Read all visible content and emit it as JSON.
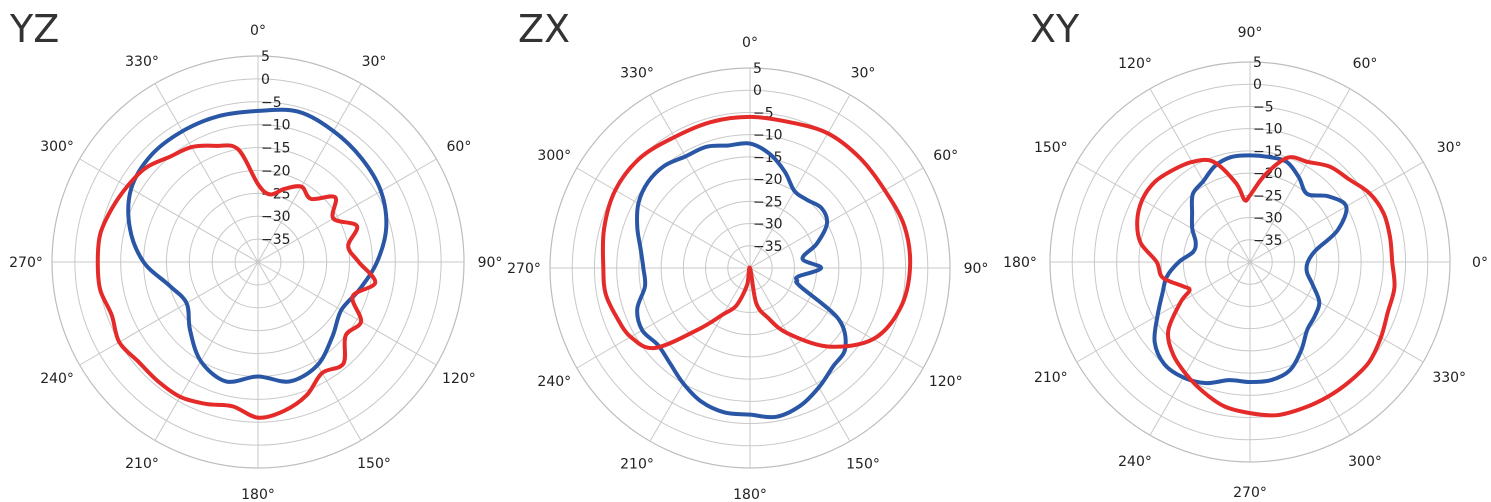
{
  "colors": {
    "blue": "#2a56a6",
    "red": "#e52a2a"
  },
  "chart_data": [
    {
      "type": "polar",
      "title": "YZ",
      "angle_labels": [
        "0°",
        "30°",
        "60°",
        "90°",
        "120°",
        "150°",
        "180°",
        "210°",
        "240°",
        "270°",
        "300°",
        "330°"
      ],
      "radial_ticks": [
        5,
        0,
        -5,
        -10,
        -15,
        -20,
        -25,
        -30,
        -35
      ],
      "rlim": [
        -40,
        5
      ],
      "grid": true,
      "angle_zero": "top",
      "angle_direction": "clockwise",
      "series": [
        {
          "color": "#2a56a6",
          "angles": [
            0,
            15,
            30,
            45,
            60,
            75,
            90,
            105,
            120,
            135,
            150,
            165,
            180,
            195,
            210,
            225,
            240,
            255,
            270,
            285,
            300,
            315,
            330,
            345
          ],
          "values": [
            -7,
            -6,
            -7,
            -8,
            -9,
            -11,
            -14,
            -17,
            -19,
            -17,
            -14,
            -13,
            -15,
            -13,
            -15,
            -19,
            -22,
            -20,
            -15,
            -11,
            -8,
            -7,
            -7,
            -7
          ]
        },
        {
          "color": "#e52a2a",
          "angles": [
            0,
            10,
            20,
            30,
            40,
            50,
            60,
            70,
            80,
            90,
            100,
            110,
            120,
            130,
            140,
            150,
            160,
            170,
            180,
            190,
            200,
            210,
            220,
            230,
            240,
            250,
            260,
            270,
            280,
            290,
            300,
            310,
            320,
            330,
            340,
            350
          ],
          "values": [
            -23,
            -25,
            -23,
            -21,
            -22,
            -18,
            -21,
            -17,
            -20,
            -18,
            -14,
            -18,
            -14,
            -15,
            -11,
            -12,
            -9,
            -7,
            -6,
            -8,
            -7,
            -6,
            -6,
            -6,
            -5,
            -6,
            -5,
            -5,
            -5,
            -6,
            -7,
            -8,
            -10,
            -11,
            -13,
            -15
          ]
        }
      ]
    },
    {
      "type": "polar",
      "title": "ZX",
      "angle_labels": [
        "0°",
        "30°",
        "60°",
        "90°",
        "120°",
        "150°",
        "180°",
        "210°",
        "240°",
        "270°",
        "300°",
        "330°"
      ],
      "radial_ticks": [
        5,
        0,
        -5,
        -10,
        -15,
        -20,
        -25,
        -30,
        -35
      ],
      "rlim": [
        -40,
        5
      ],
      "grid": true,
      "angle_zero": "top",
      "angle_direction": "clockwise",
      "series": [
        {
          "color": "#2a56a6",
          "angles": [
            0,
            10,
            20,
            30,
            40,
            50,
            60,
            70,
            80,
            90,
            100,
            105,
            110,
            120,
            130,
            140,
            150,
            160,
            170,
            180,
            190,
            200,
            210,
            220,
            230,
            240,
            250,
            260,
            270,
            280,
            290,
            300,
            310,
            320,
            330,
            340,
            350
          ],
          "values": [
            -12,
            -14,
            -17,
            -20,
            -20,
            -19,
            -20,
            -24,
            -28,
            -24,
            -29,
            -29,
            -28,
            -17,
            -12,
            -11,
            -9,
            -7,
            -6,
            -7,
            -7,
            -8,
            -10,
            -12,
            -13,
            -12,
            -13,
            -16,
            -16,
            -15,
            -13,
            -11,
            -10,
            -10,
            -11,
            -11,
            -12
          ]
        },
        {
          "color": "#e52a2a",
          "angles": [
            0,
            15,
            30,
            45,
            60,
            75,
            90,
            105,
            120,
            135,
            150,
            160,
            170,
            180,
            190,
            200,
            210,
            220,
            230,
            240,
            250,
            260,
            270,
            285,
            300,
            315,
            330,
            345
          ],
          "values": [
            -6,
            -6,
            -5,
            -5,
            -5,
            -4,
            -4,
            -5,
            -8,
            -15,
            -23,
            -28,
            -32,
            -40,
            -36,
            -31,
            -28,
            -22,
            -12,
            -9,
            -8,
            -7,
            -7,
            -6,
            -5,
            -5,
            -6,
            -6
          ]
        }
      ]
    },
    {
      "type": "polar",
      "title": "XY",
      "angle_labels": [
        "0°",
        "30°",
        "60°",
        "90°",
        "120°",
        "150°",
        "180°",
        "210°",
        "240°",
        "270°",
        "300°",
        "330°"
      ],
      "radial_ticks": [
        5,
        0,
        -5,
        -10,
        -15,
        -20,
        -25,
        -30,
        -35
      ],
      "rlim": [
        -40,
        5
      ],
      "grid": true,
      "angle_zero": "right",
      "angle_direction": "counterclockwise",
      "series": [
        {
          "color": "#2a56a6",
          "angles": [
            0,
            10,
            20,
            30,
            40,
            50,
            60,
            70,
            80,
            90,
            100,
            110,
            120,
            130,
            140,
            150,
            160,
            170,
            180,
            190,
            200,
            210,
            220,
            230,
            240,
            250,
            260,
            270,
            280,
            290,
            300,
            310,
            320,
            330,
            340,
            350
          ],
          "values": [
            -27,
            -25,
            -19,
            -15,
            -17,
            -20,
            -18,
            -16,
            -16,
            -16,
            -16,
            -17,
            -19,
            -20,
            -23,
            -25,
            -27,
            -27,
            -24,
            -21,
            -19,
            -16,
            -12,
            -10,
            -10,
            -11,
            -13,
            -13,
            -13,
            -14,
            -17,
            -20,
            -21,
            -22,
            -25,
            -27
          ]
        },
        {
          "color": "#e52a2a",
          "angles": [
            0,
            10,
            20,
            30,
            40,
            50,
            60,
            70,
            80,
            90,
            95,
            100,
            110,
            120,
            130,
            140,
            150,
            160,
            170,
            180,
            190,
            200,
            205,
            210,
            220,
            230,
            240,
            250,
            260,
            270,
            280,
            290,
            300,
            310,
            320,
            330,
            340,
            350
          ],
          "values": [
            -8,
            -8,
            -8,
            -9,
            -11,
            -12,
            -14,
            -15,
            -20,
            -25,
            -26,
            -22,
            -16,
            -14,
            -13,
            -12,
            -12,
            -13,
            -15,
            -19,
            -20,
            -24,
            -25,
            -22,
            -16,
            -13,
            -11,
            -9,
            -7,
            -6,
            -5,
            -5,
            -5,
            -5,
            -5,
            -6,
            -7,
            -7
          ]
        }
      ]
    }
  ]
}
